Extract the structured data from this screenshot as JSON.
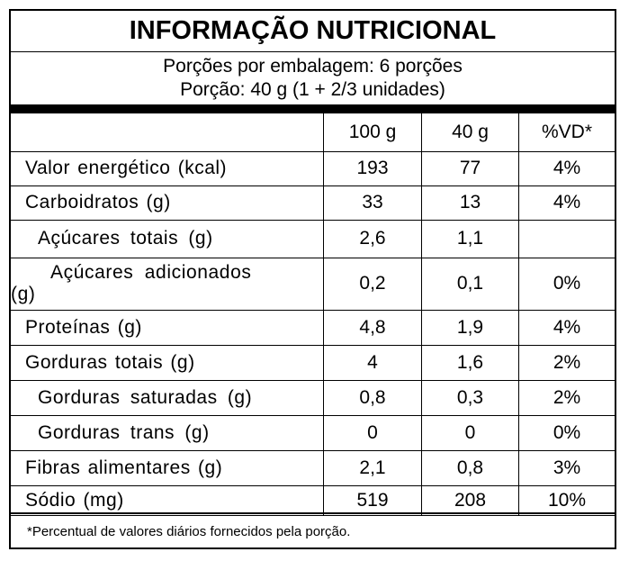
{
  "title": "INFORMAÇÃO NUTRICIONAL",
  "servings_per_package": "Porções por embalagem: 6 porções",
  "serving_size": "Porção: 40 g (1 + 2/3 unidades)",
  "columns": [
    "",
    "100 g",
    "40 g",
    "%VD*"
  ],
  "rows": [
    {
      "name": "Valor energético (kcal)",
      "v100": "193",
      "v40": "77",
      "vd": "4%"
    },
    {
      "name": "Carboidratos (g)",
      "v100": "33",
      "v40": "13",
      "vd": "4%"
    },
    {
      "name": "Açúcares totais (g)",
      "v100": "2,6",
      "v40": "1,1",
      "vd": ""
    },
    {
      "name": "Açúcares adicionados",
      "name_wrap": "(g)",
      "v100": "0,2",
      "v40": "0,1",
      "vd": "0%"
    },
    {
      "name": "Proteínas (g)",
      "v100": "4,8",
      "v40": "1,9",
      "vd": "4%"
    },
    {
      "name": "Gorduras totais (g)",
      "v100": "4",
      "v40": "1,6",
      "vd": "2%"
    },
    {
      "name": "Gorduras saturadas (g)",
      "v100": "0,8",
      "v40": "0,3",
      "vd": "2%"
    },
    {
      "name": "Gorduras trans (g)",
      "v100": "0",
      "v40": "0",
      "vd": "0%"
    },
    {
      "name": "Fibras alimentares (g)",
      "v100": "2,1",
      "v40": "0,8",
      "vd": "3%"
    },
    {
      "name": "Sódio (mg)",
      "v100": "519",
      "v40": "208",
      "vd": "10%"
    }
  ],
  "footnote": "*Percentual de valores diários fornecidos pela porção."
}
